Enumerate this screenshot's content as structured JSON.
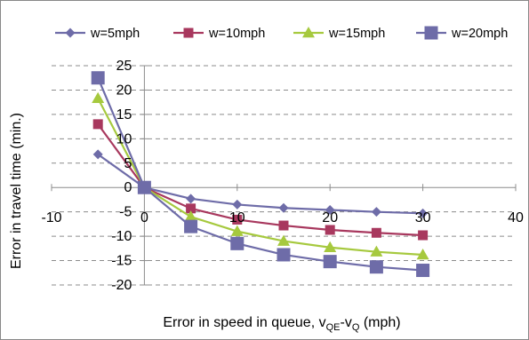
{
  "chart_data": {
    "type": "line",
    "title": "",
    "xlabel_parts": {
      "main": "Error in speed in queue, v",
      "sub1": "QE",
      "mid": "-v",
      "sub2": "Q",
      "tail": " (mph)"
    },
    "ylabel": "Error in travel time (min.)",
    "xlim": [
      -10,
      40
    ],
    "ylim": [
      -20,
      25
    ],
    "xticks": [
      -10,
      0,
      10,
      20,
      30,
      40
    ],
    "yticks": [
      -20,
      -15,
      -10,
      -5,
      0,
      5,
      10,
      15,
      20,
      25
    ],
    "grid": "horizontal dashed",
    "legend_position": "top",
    "series": [
      {
        "name": "w=5mph",
        "color": "#6E6CA8",
        "marker": "diamond",
        "points": [
          [
            -5,
            6.8
          ],
          [
            0,
            0
          ],
          [
            5,
            -2.3
          ],
          [
            10,
            -3.5
          ],
          [
            15,
            -4.2
          ],
          [
            20,
            -4.6
          ],
          [
            25,
            -5.0
          ],
          [
            30,
            -5.3
          ]
        ]
      },
      {
        "name": "w=10mph",
        "color": "#A8385E",
        "marker": "square",
        "points": [
          [
            -5,
            13.0
          ],
          [
            0,
            0
          ],
          [
            5,
            -4.3
          ],
          [
            10,
            -6.6
          ],
          [
            15,
            -7.8
          ],
          [
            20,
            -8.7
          ],
          [
            25,
            -9.3
          ],
          [
            30,
            -9.8
          ]
        ]
      },
      {
        "name": "w=15mph",
        "color": "#A6C93E",
        "marker": "triangle",
        "points": [
          [
            -5,
            18.3
          ],
          [
            0,
            0
          ],
          [
            5,
            -6.0
          ],
          [
            10,
            -9.0
          ],
          [
            15,
            -11.0
          ],
          [
            20,
            -12.3
          ],
          [
            25,
            -13.2
          ],
          [
            30,
            -13.8
          ]
        ]
      },
      {
        "name": "w=20mph",
        "color": "#6E6CA8",
        "marker": "bigsquare",
        "points": [
          [
            -5,
            22.5
          ],
          [
            0,
            0
          ],
          [
            5,
            -8.0
          ],
          [
            10,
            -11.5
          ],
          [
            15,
            -13.8
          ],
          [
            20,
            -15.2
          ],
          [
            25,
            -16.3
          ],
          [
            30,
            -17.0
          ]
        ]
      }
    ]
  }
}
